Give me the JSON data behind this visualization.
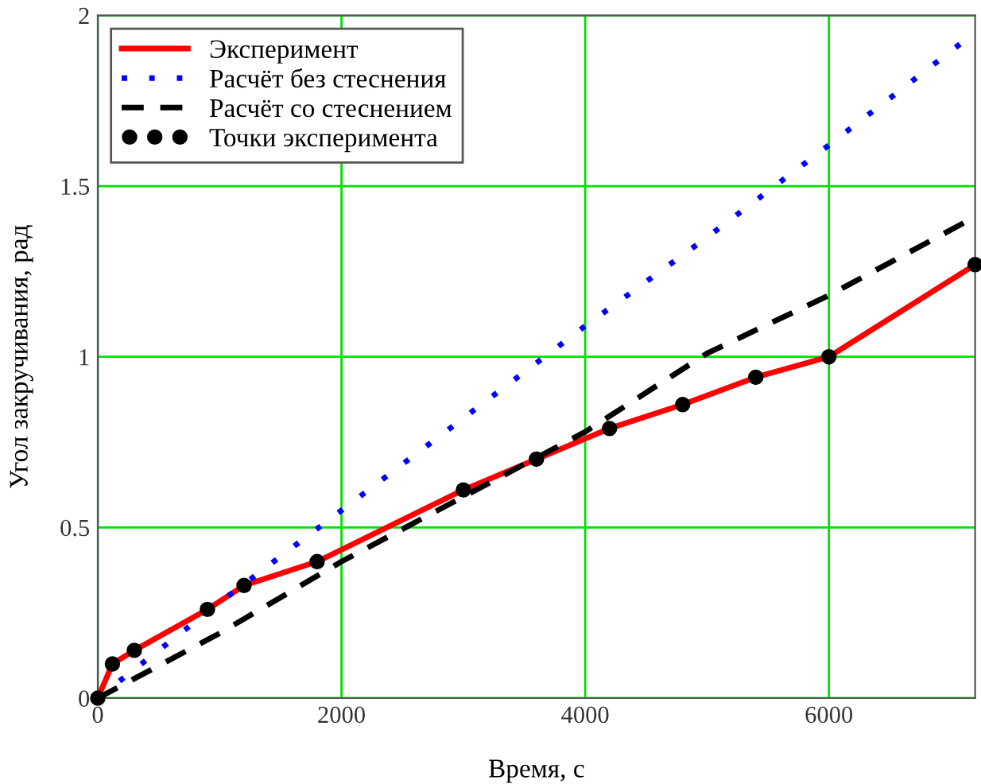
{
  "chart_data": {
    "type": "line",
    "xlabel": "Время, с",
    "ylabel": "Угол закручивания, рад",
    "xlim": [
      0,
      7200
    ],
    "ylim": [
      0,
      2
    ],
    "xticks": [
      0,
      2000,
      4000,
      6000
    ],
    "yticks": [
      0,
      0.5,
      1,
      1.5,
      2
    ],
    "grid": true,
    "legend": "top left",
    "series": [
      {
        "name": "Эксперимент",
        "color": "#ff0000",
        "line_style": "solid",
        "marker": "none",
        "x": [
          0,
          120,
          300,
          900,
          1200,
          1800,
          3000,
          3600,
          4200,
          4800,
          5400,
          6000,
          7200
        ],
        "values": [
          0,
          0.1,
          0.14,
          0.26,
          0.33,
          0.4,
          0.61,
          0.7,
          0.79,
          0.86,
          0.94,
          1.0,
          1.27
        ]
      },
      {
        "name": "Расчёт без стеснения",
        "color": "#0000ff",
        "line_style": "dotted",
        "marker": "none",
        "x": [
          0,
          1000,
          2000,
          3000,
          4000,
          5000,
          6000,
          7200
        ],
        "values": [
          0,
          0.28,
          0.55,
          0.82,
          1.09,
          1.35,
          1.62,
          1.95
        ]
      },
      {
        "name": "Расчёт со стеснением",
        "color": "#000000",
        "line_style": "dashed",
        "marker": "none",
        "x": [
          0,
          1000,
          2000,
          3000,
          4000,
          5000,
          6000,
          7200
        ],
        "values": [
          0,
          0.19,
          0.4,
          0.59,
          0.78,
          1.01,
          1.18,
          1.41
        ]
      },
      {
        "name": "Точки эксперимента",
        "type": "scatter",
        "color": "#000000",
        "marker": "circle",
        "x": [
          0,
          120,
          300,
          900,
          1200,
          1800,
          3000,
          3600,
          4200,
          4800,
          5400,
          6000,
          7200
        ],
        "values": [
          0,
          0.1,
          0.14,
          0.26,
          0.33,
          0.4,
          0.61,
          0.7,
          0.79,
          0.86,
          0.94,
          1.0,
          1.27
        ]
      }
    ]
  }
}
